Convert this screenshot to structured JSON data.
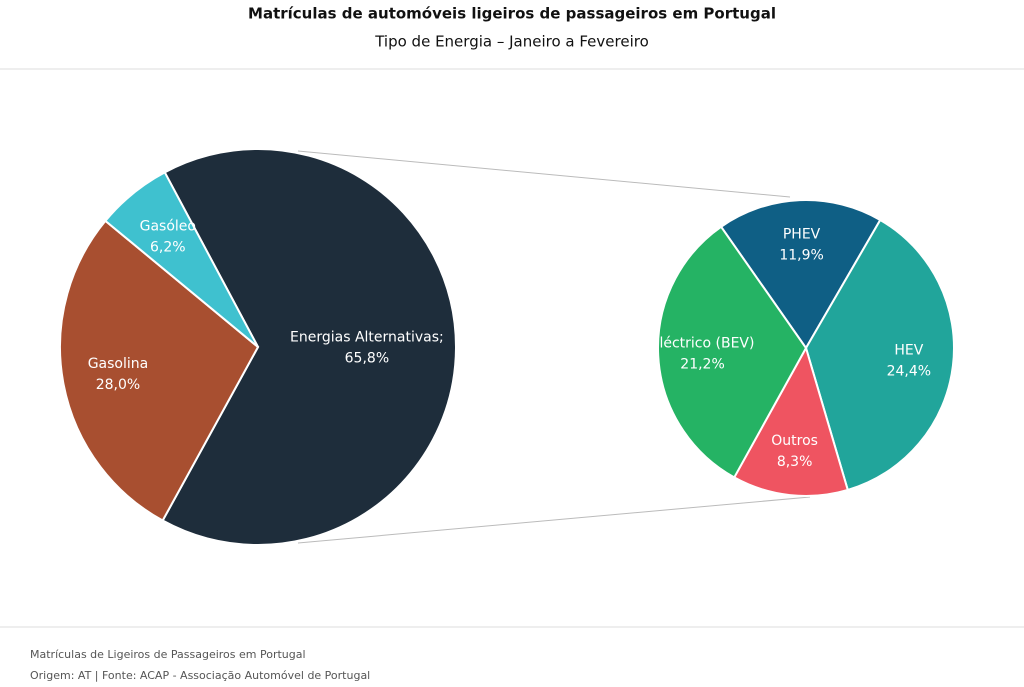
{
  "chart_data": [
    {
      "type": "pie",
      "title": "Matrículas de automóveis ligeiros de passageiros em Portugal",
      "subtitle": "Tipo de Energia – Janeiro a Fevereiro",
      "categories": [
        "Energias Alternativas;",
        "Gasolina",
        "Gasóleo"
      ],
      "values": [
        65.8,
        28.0,
        6.2
      ],
      "value_labels": [
        "65,8%",
        "28,0%",
        "6,2%"
      ],
      "colors": [
        "#1e2d3b",
        "#a84f30",
        "#3fc1cf"
      ]
    },
    {
      "type": "pie",
      "categories": [
        "PHEV",
        "HEV",
        "Outros",
        "Eléctrico (BEV)"
      ],
      "values": [
        11.9,
        24.4,
        8.3,
        21.2
      ],
      "value_labels": [
        "11,9%",
        "24,4%",
        "8,3%",
        "21,2%"
      ],
      "colors": [
        "#0f5f85",
        "#21a59b",
        "#ef5461",
        "#25b364"
      ]
    }
  ],
  "footer": [
    "Matrículas de Ligeiros de Passageiros em Portugal",
    "Origem: AT | Fonte: ACAP - Associação Automóvel de Portugal"
  ]
}
